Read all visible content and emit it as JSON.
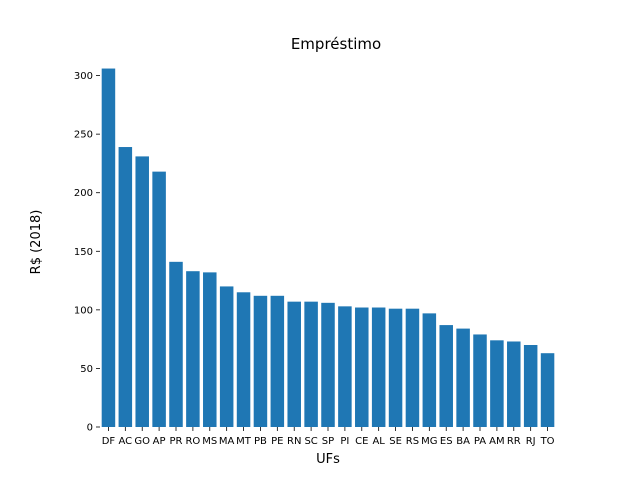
{
  "chart_data": {
    "type": "bar",
    "title": "Empréstimo",
    "xlabel": "UFs",
    "ylabel": "R$ (2018)",
    "categories": [
      "DF",
      "AC",
      "GO",
      "AP",
      "PR",
      "RO",
      "MS",
      "MA",
      "MT",
      "PB",
      "PE",
      "RN",
      "SC",
      "SP",
      "PI",
      "CE",
      "AL",
      "SE",
      "RS",
      "MG",
      "ES",
      "BA",
      "PA",
      "AM",
      "RR",
      "RJ",
      "TO"
    ],
    "values": [
      306,
      239,
      231,
      218,
      141,
      133,
      132,
      120,
      115,
      112,
      112,
      107,
      107,
      106,
      103,
      102,
      102,
      101,
      101,
      97,
      87,
      84,
      79,
      74,
      73,
      70,
      63
    ],
    "yticks": [
      0,
      50,
      100,
      150,
      200,
      250,
      300
    ],
    "ylim": [
      0,
      315
    ],
    "bar_color": "#1f77b4",
    "grid": false,
    "legend": "none"
  }
}
